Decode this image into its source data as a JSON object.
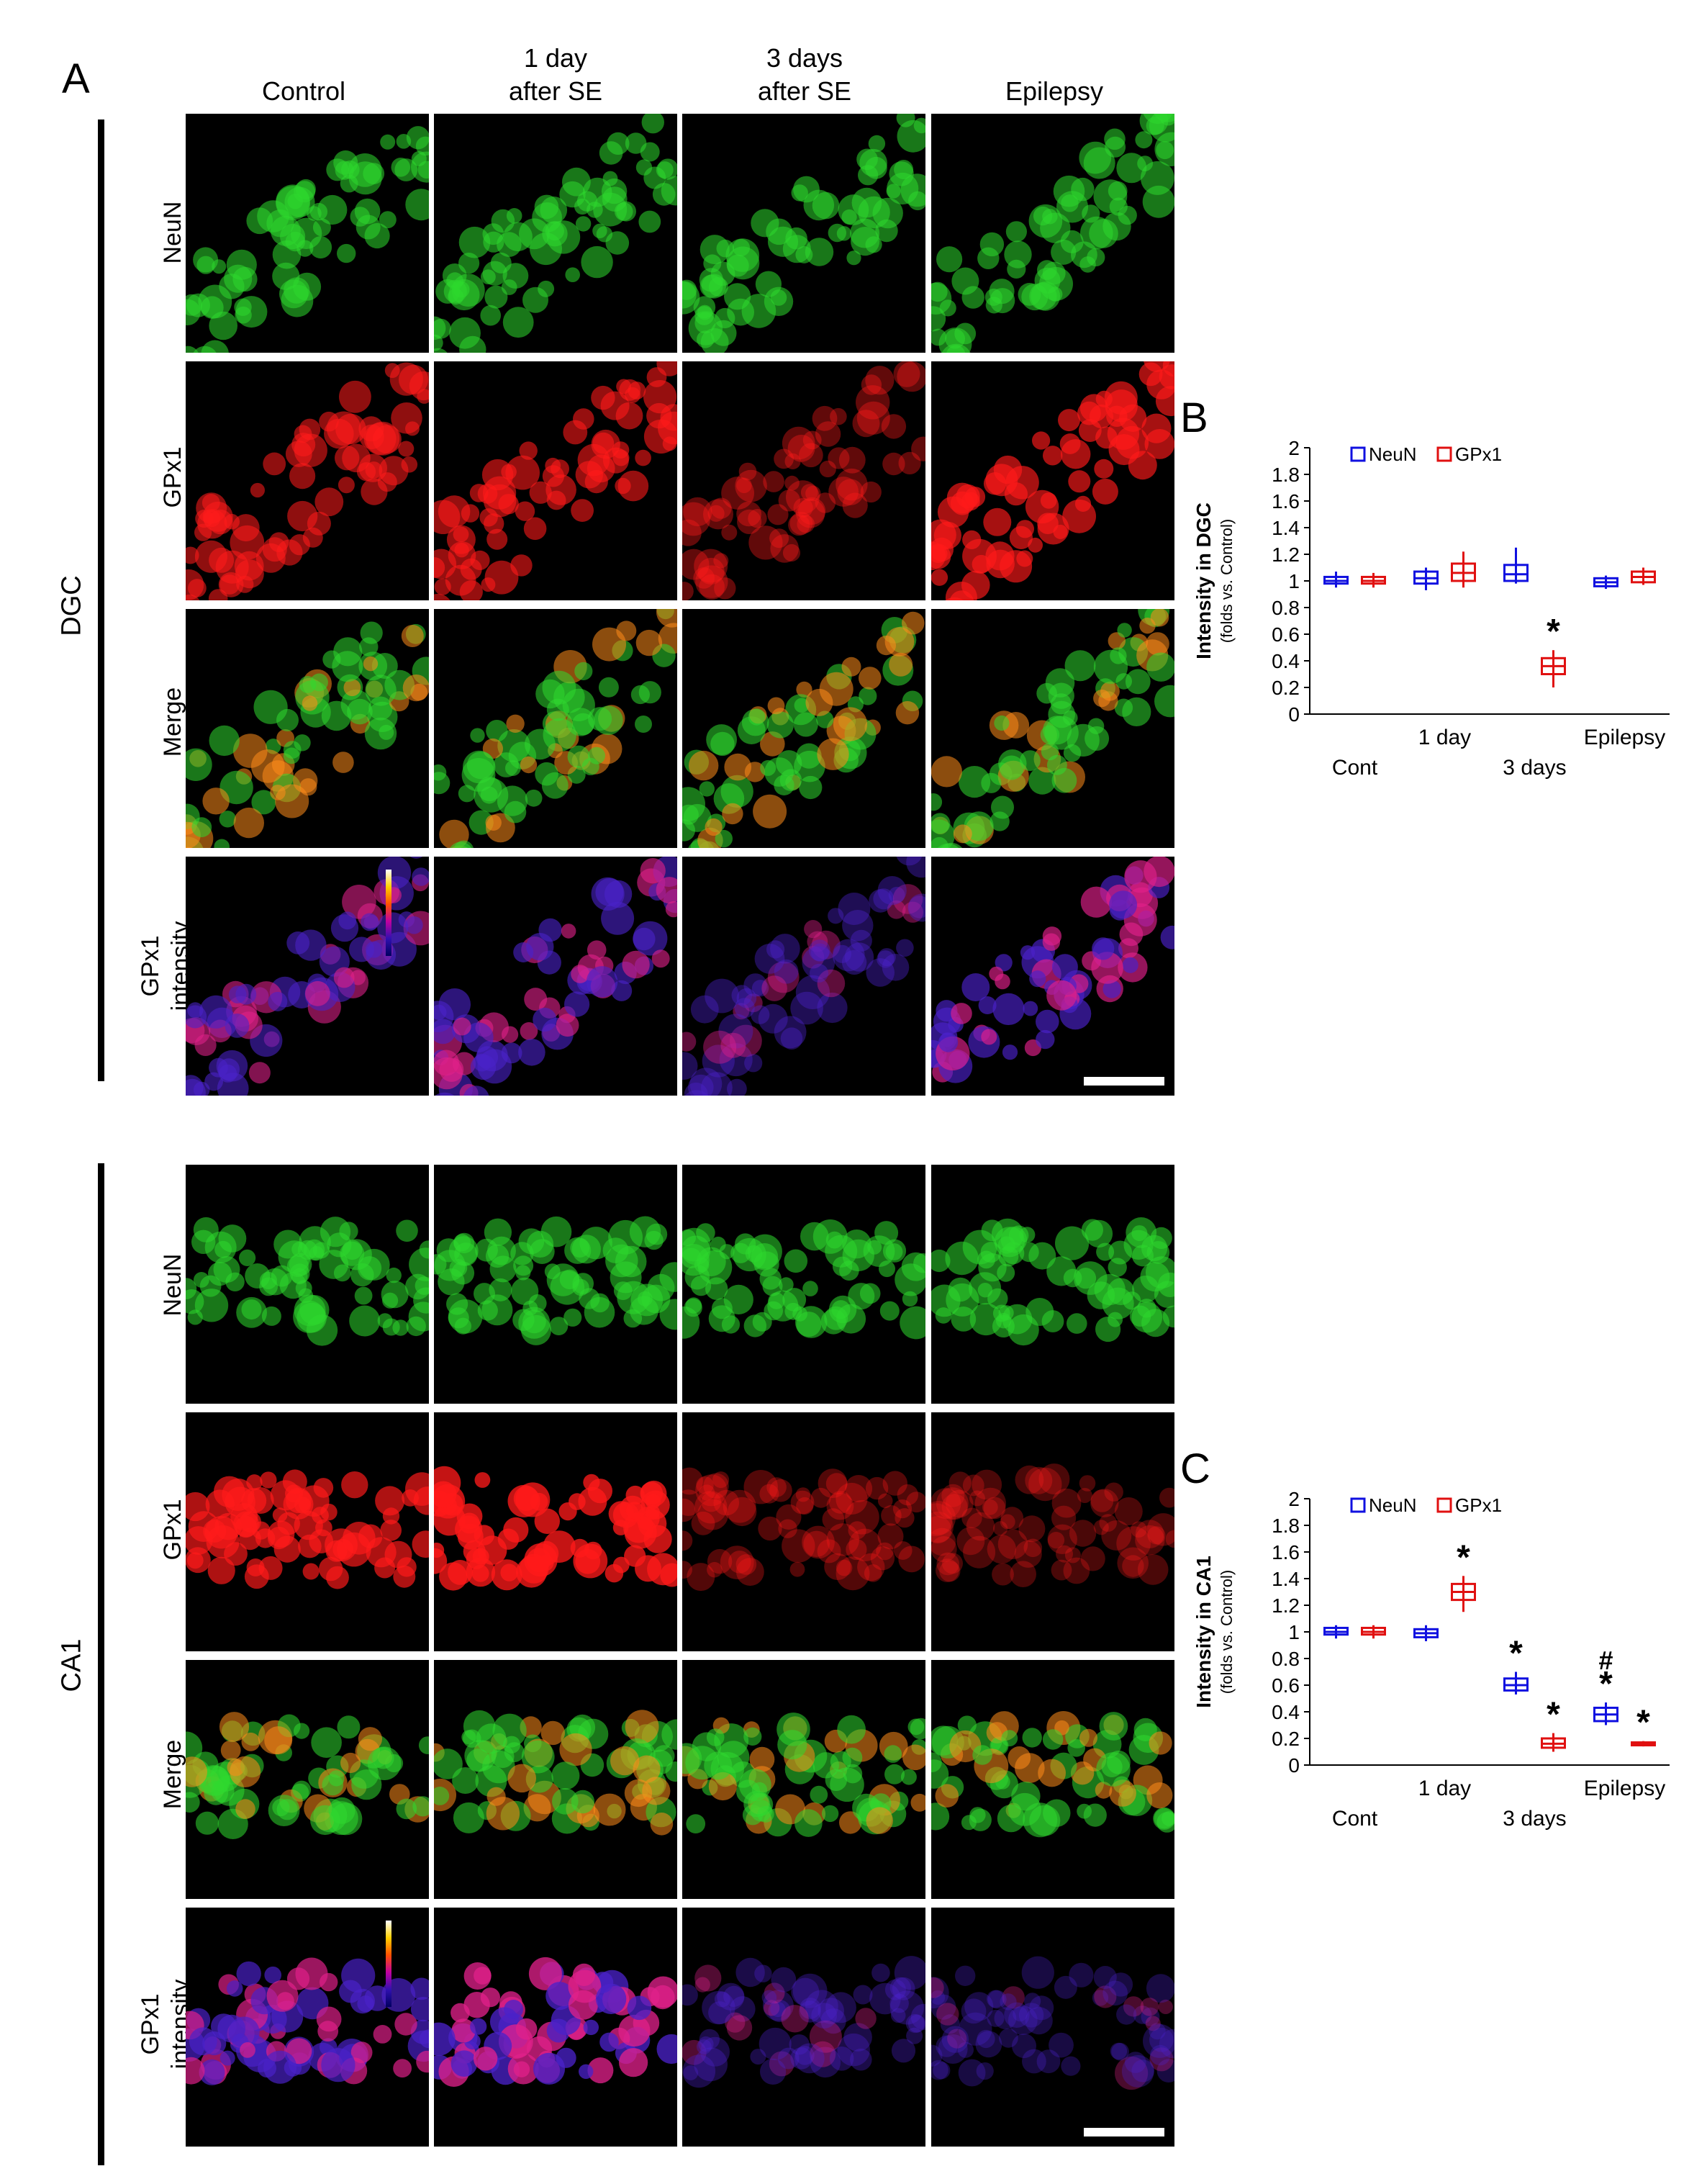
{
  "panel_a": {
    "letter": "A",
    "columns": [
      "Control",
      "1 day\nafter SE",
      "3 days\nafter SE",
      "Epilepsy"
    ],
    "groups": [
      {
        "label": "DGC",
        "rows": [
          "NeuN",
          "GPx1",
          "Merge",
          "GPx1\nintensity"
        ]
      },
      {
        "label": "CA1",
        "rows": [
          "NeuN",
          "GPx1",
          "Merge",
          "GPx1\nintensity"
        ]
      }
    ],
    "intensity_tiles": {
      "DGC": [
        0.6,
        0.65,
        0.3,
        0.75
      ],
      "CA1": [
        0.8,
        0.95,
        0.2,
        0.15
      ]
    }
  },
  "chart_data": [
    {
      "panel": "B",
      "type": "box",
      "ylabel": "Intensity in DGC",
      "ylabel_sub": "(folds vs. Control)",
      "ylim": [
        0,
        2
      ],
      "yticks": [
        "0",
        "0.2",
        "0.4",
        "0.6",
        "0.8",
        "1",
        "1.2",
        "1.4",
        "1.6",
        "1.8",
        "2"
      ],
      "categories": [
        "Cont",
        "1 day",
        "3 days",
        "Epilepsy"
      ],
      "legend": [
        "NeuN",
        "GPx1"
      ],
      "legend_position": "top",
      "series": [
        {
          "name": "NeuN",
          "color": "#1010e0",
          "boxes": [
            {
              "min": 0.95,
              "q1": 0.98,
              "median": 1.0,
              "q3": 1.03,
              "max": 1.07
            },
            {
              "min": 0.93,
              "q1": 0.98,
              "median": 1.02,
              "q3": 1.07,
              "max": 1.1
            },
            {
              "min": 0.98,
              "q1": 1.0,
              "median": 1.05,
              "q3": 1.12,
              "max": 1.25
            },
            {
              "min": 0.94,
              "q1": 0.96,
              "median": 0.99,
              "q3": 1.02,
              "max": 1.04
            }
          ],
          "markers": [
            "",
            "",
            "",
            ""
          ]
        },
        {
          "name": "GPx1",
          "color": "#e01010",
          "boxes": [
            {
              "min": 0.95,
              "q1": 0.98,
              "median": 1.0,
              "q3": 1.03,
              "max": 1.06
            },
            {
              "min": 0.95,
              "q1": 1.0,
              "median": 1.06,
              "q3": 1.13,
              "max": 1.22
            },
            {
              "min": 0.2,
              "q1": 0.3,
              "median": 0.36,
              "q3": 0.42,
              "max": 0.48
            },
            {
              "min": 0.97,
              "q1": 0.99,
              "median": 1.03,
              "q3": 1.07,
              "max": 1.1
            }
          ],
          "markers": [
            "",
            "",
            "*",
            ""
          ]
        }
      ]
    },
    {
      "panel": "C",
      "type": "box",
      "ylabel": "Intensity in CA1",
      "ylabel_sub": "(folds vs. Control)",
      "ylim": [
        0,
        2
      ],
      "yticks": [
        "0",
        "0.2",
        "0.4",
        "0.6",
        "0.8",
        "1",
        "1.2",
        "1.4",
        "1.6",
        "1.8",
        "2"
      ],
      "categories": [
        "Cont",
        "1 day",
        "3 days",
        "Epilepsy"
      ],
      "legend": [
        "NeuN",
        "GPx1"
      ],
      "legend_position": "top",
      "series": [
        {
          "name": "NeuN",
          "color": "#1010e0",
          "boxes": [
            {
              "min": 0.95,
              "q1": 0.98,
              "median": 1.0,
              "q3": 1.03,
              "max": 1.05
            },
            {
              "min": 0.93,
              "q1": 0.96,
              "median": 0.99,
              "q3": 1.02,
              "max": 1.05
            },
            {
              "min": 0.53,
              "q1": 0.56,
              "median": 0.6,
              "q3": 0.65,
              "max": 0.7
            },
            {
              "min": 0.3,
              "q1": 0.33,
              "median": 0.38,
              "q3": 0.43,
              "max": 0.47
            }
          ],
          "markers": [
            "",
            "",
            "*",
            "#\n*"
          ]
        },
        {
          "name": "GPx1",
          "color": "#e01010",
          "boxes": [
            {
              "min": 0.95,
              "q1": 0.98,
              "median": 1.0,
              "q3": 1.03,
              "max": 1.05
            },
            {
              "min": 1.15,
              "q1": 1.24,
              "median": 1.3,
              "q3": 1.36,
              "max": 1.42
            },
            {
              "min": 0.1,
              "q1": 0.13,
              "median": 0.16,
              "q3": 0.2,
              "max": 0.24
            },
            {
              "min": 0.14,
              "q1": 0.15,
              "median": 0.16,
              "q3": 0.17,
              "max": 0.18
            }
          ],
          "markers": [
            "",
            "*",
            "*",
            "*"
          ]
        }
      ]
    }
  ]
}
